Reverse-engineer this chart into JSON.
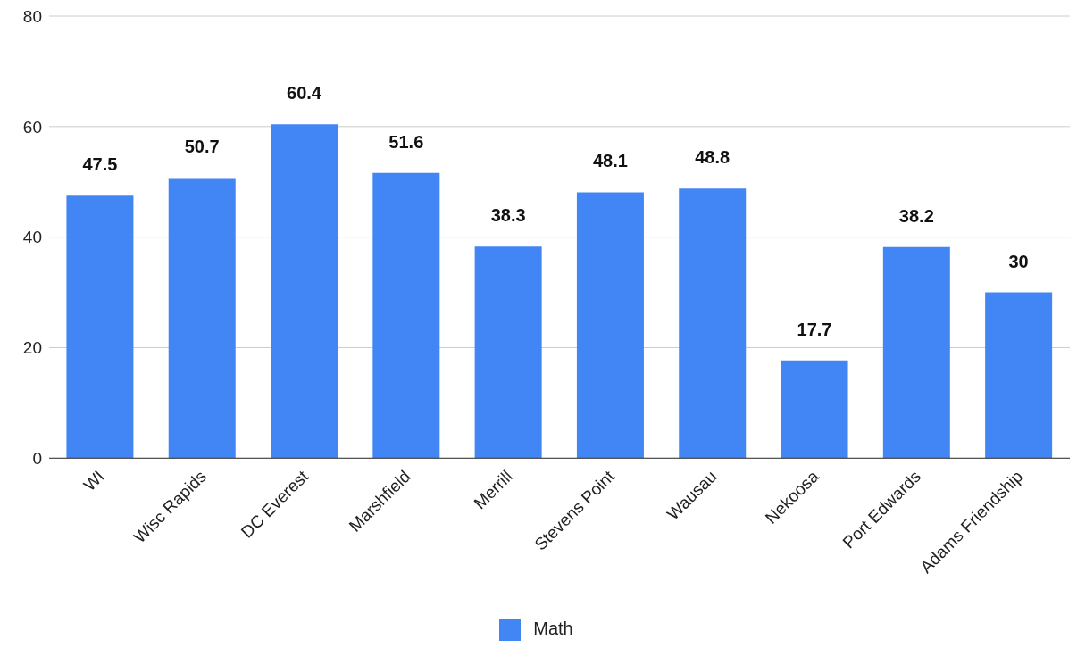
{
  "chart_data": {
    "type": "bar",
    "categories": [
      "WI",
      "Wisc Rapids",
      "DC Everest",
      "Marshfield",
      "Merrill",
      "Stevens Point",
      "Wausau",
      "Nekoosa",
      "Port Edwards",
      "Adams Friendship"
    ],
    "series": [
      {
        "name": "Math",
        "color": "#4285f4",
        "values": [
          47.5,
          50.7,
          60.4,
          51.6,
          38.3,
          48.1,
          48.8,
          17.7,
          38.2,
          30
        ]
      }
    ],
    "ylim": [
      0,
      80
    ],
    "yticks": [
      0,
      20,
      40,
      60,
      80
    ],
    "grid": "y",
    "legend": "bottom",
    "data_labels": true
  }
}
